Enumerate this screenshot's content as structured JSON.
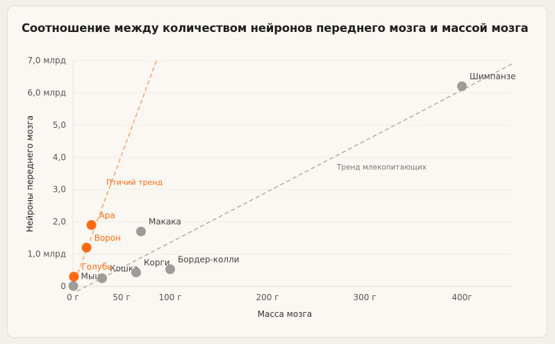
{
  "chart_data": {
    "type": "scatter",
    "title": "Соотношение между количеством нейронов переднего мозга и массой мозга",
    "xlabel": "Масса мозга",
    "ylabel": "Нейроны переднего мозга",
    "xlim": [
      0,
      450
    ],
    "ylim": [
      0,
      7.0
    ],
    "grid": true,
    "x_ticks": [
      {
        "value": 0,
        "label": "0 г"
      },
      {
        "value": 50,
        "label": "50 г"
      },
      {
        "value": 100,
        "label": "100 г"
      },
      {
        "value": 200,
        "label": "200 г"
      },
      {
        "value": 300,
        "label": "300 г"
      },
      {
        "value": 400,
        "label": "400г"
      }
    ],
    "y_ticks": [
      {
        "value": 0,
        "label": "0"
      },
      {
        "value": 1,
        "label": "1,0 млрд"
      },
      {
        "value": 2,
        "label": "2,0"
      },
      {
        "value": 3,
        "label": "3,0"
      },
      {
        "value": 4,
        "label": "4,0"
      },
      {
        "value": 5,
        "label": "5,0"
      },
      {
        "value": 6,
        "label": "6,0 млрд"
      },
      {
        "value": 7,
        "label": "7,0 млрд"
      }
    ],
    "series": [
      {
        "group": "birds",
        "color": "#ff6a13",
        "points": [
          {
            "label": "Голубь",
            "x": 1,
            "y": 0.3
          },
          {
            "label": "Ворон",
            "x": 14,
            "y": 1.2
          },
          {
            "label": "Ара",
            "x": 19,
            "y": 1.9
          }
        ]
      },
      {
        "group": "mammals",
        "color": "#9e9b98",
        "points": [
          {
            "label": "Мышь",
            "x": 0.4,
            "y": 0.01
          },
          {
            "label": "Кошка",
            "x": 30,
            "y": 0.25
          },
          {
            "label": "Корги",
            "x": 65,
            "y": 0.43
          },
          {
            "label": "Макака",
            "x": 70,
            "y": 1.7
          },
          {
            "label": "Бордер-колли",
            "x": 100,
            "y": 0.53
          },
          {
            "label": "Шимпанзе",
            "x": 400,
            "y": 6.2
          }
        ]
      }
    ],
    "trend_lines": [
      {
        "label": "Птичий тренд",
        "color": "#ff9a5c",
        "from": [
          0,
          0
        ],
        "to": [
          86,
          7.0
        ]
      },
      {
        "label": "Тренд млекопитающих",
        "color": "#aaa6a2",
        "from": [
          -2,
          -0.25
        ],
        "to": [
          452,
          6.9
        ]
      }
    ]
  }
}
